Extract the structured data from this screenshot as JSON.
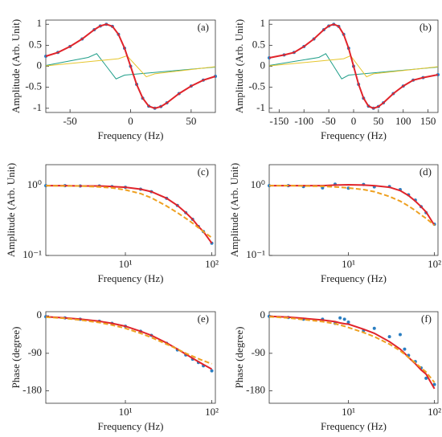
{
  "chart_data": [
    {
      "type": "line",
      "panel_label": "(a)",
      "x_label": "Frequency (Hz)",
      "y_label": "Amplitude (Arb. Unit)",
      "xlim": [
        -70,
        70
      ],
      "xticks": [
        -50,
        0,
        50
      ],
      "ylim": [
        -1.1,
        1.1
      ],
      "yticks": [
        -1,
        -0.5,
        0,
        0.5,
        1
      ],
      "x": [
        -70,
        -60,
        -50,
        -40,
        -30,
        -25,
        -20,
        -15,
        -10,
        -5,
        0,
        5,
        10,
        15,
        20,
        25,
        30,
        40,
        50,
        60,
        70
      ],
      "series": [
        {
          "style": "line",
          "color": "#1f9e89",
          "x": [
            -70,
            -35,
            -28,
            -20,
            -12,
            -5,
            70
          ],
          "values": [
            0.02,
            0.21,
            0.3,
            0,
            -0.3,
            -0.21,
            -0.02
          ]
        },
        {
          "style": "line",
          "color": "#e6c62d",
          "x": [
            -70,
            -10,
            -3,
            5,
            13,
            20,
            70
          ],
          "values": [
            0.01,
            0.18,
            0.25,
            0,
            -0.25,
            -0.18,
            -0.01
          ]
        },
        {
          "style": "dots",
          "color": "#2a7ec1",
          "values": [
            0.24,
            0.33,
            0.47,
            0.65,
            0.87,
            0.96,
            1,
            0.95,
            0.76,
            0.43,
            0,
            -0.43,
            -0.76,
            -0.95,
            -1,
            -0.96,
            -0.87,
            -0.65,
            -0.47,
            -0.33,
            -0.24
          ]
        },
        {
          "style": "line",
          "color": "#e0242b",
          "values": [
            0.24,
            0.33,
            0.47,
            0.65,
            0.87,
            0.96,
            1,
            0.95,
            0.76,
            0.43,
            0,
            -0.43,
            -0.76,
            -0.95,
            -1,
            -0.96,
            -0.87,
            -0.65,
            -0.47,
            -0.33,
            -0.24
          ]
        }
      ]
    },
    {
      "type": "line",
      "panel_label": "(b)",
      "x_label": "Frequency (Hz)",
      "y_label": "Amplitude (Arb. Unit)",
      "xlim": [
        -170,
        170
      ],
      "xticks": [
        -150,
        -100,
        -50,
        0,
        50,
        100,
        150
      ],
      "ylim": [
        -1.1,
        1.1
      ],
      "yticks": [
        -1,
        -0.5,
        0,
        0.5,
        1
      ],
      "x": [
        -170,
        -140,
        -120,
        -100,
        -80,
        -60,
        -50,
        -40,
        -30,
        -20,
        -10,
        0,
        10,
        20,
        30,
        40,
        50,
        60,
        80,
        100,
        120,
        140,
        170
      ],
      "series": [
        {
          "style": "line",
          "color": "#1f9e89",
          "x": [
            -170,
            -70,
            -56,
            -40,
            -24,
            -10,
            170
          ],
          "values": [
            0.02,
            0.21,
            0.3,
            0,
            -0.3,
            -0.21,
            -0.02
          ]
        },
        {
          "style": "line",
          "color": "#e6c62d",
          "x": [
            -170,
            -20,
            -6,
            10,
            26,
            40,
            170
          ],
          "values": [
            0.01,
            0.18,
            0.25,
            0,
            -0.25,
            -0.18,
            -0.01
          ]
        },
        {
          "style": "dots",
          "color": "#2a7ec1",
          "values": [
            0.2,
            0.27,
            0.33,
            0.47,
            0.65,
            0.87,
            0.96,
            1,
            0.95,
            0.76,
            0.43,
            0,
            -0.43,
            -0.76,
            -0.95,
            -1,
            -0.96,
            -0.87,
            -0.65,
            -0.47,
            -0.33,
            -0.27,
            -0.2
          ]
        },
        {
          "style": "line",
          "color": "#e0242b",
          "values": [
            0.2,
            0.27,
            0.33,
            0.47,
            0.65,
            0.87,
            0.96,
            1,
            0.95,
            0.76,
            0.43,
            0,
            -0.43,
            -0.76,
            -0.95,
            -1,
            -0.96,
            -0.87,
            -0.65,
            -0.47,
            -0.33,
            -0.27,
            -0.2
          ]
        }
      ]
    },
    {
      "type": "line",
      "panel_label": "(c)",
      "x_label": "Frequency (Hz)",
      "y_label": "Amplitude (Arb. Unit)",
      "xscale": "log",
      "yscale": "log",
      "xlim": [
        1.2,
        110
      ],
      "xticks": [
        {
          "value": 10,
          "label": "10¹"
        },
        {
          "value": 100,
          "label": "10²"
        }
      ],
      "ylim": [
        0.1,
        2
      ],
      "yticks": [
        {
          "value": 0.1,
          "label": "10⁻¹"
        },
        {
          "value": 1,
          "label": "10⁰"
        }
      ],
      "x": [
        1.2,
        2,
        3,
        5,
        7,
        10,
        15,
        20,
        30,
        40,
        50,
        60,
        70,
        80,
        100
      ],
      "series": [
        {
          "style": "dots",
          "color": "#2a7ec1",
          "values": [
            1,
            1,
            0.99,
            0.99,
            0.97,
            0.95,
            0.89,
            0.82,
            0.66,
            0.52,
            0.41,
            0.33,
            0.26,
            0.22,
            0.15
          ]
        },
        {
          "style": "line",
          "color": "#e0242b",
          "values": [
            1,
            1,
            0.99,
            0.99,
            0.97,
            0.95,
            0.89,
            0.82,
            0.66,
            0.52,
            0.41,
            0.33,
            0.26,
            0.22,
            0.15
          ]
        },
        {
          "style": "dashed",
          "color": "#eea020",
          "values": [
            1,
            0.99,
            0.99,
            0.96,
            0.93,
            0.87,
            0.77,
            0.67,
            0.51,
            0.41,
            0.34,
            0.29,
            0.25,
            0.22,
            0.18
          ]
        }
      ]
    },
    {
      "type": "line",
      "panel_label": "(d)",
      "x_label": "Frequency (Hz)",
      "y_label": "Amplitude (Arb. Unit)",
      "xscale": "log",
      "yscale": "log",
      "xlim": [
        1.2,
        110
      ],
      "xticks": [
        {
          "value": 10,
          "label": "10¹"
        },
        {
          "value": 100,
          "label": "10²"
        }
      ],
      "ylim": [
        0.1,
        2
      ],
      "yticks": [
        {
          "value": 0.1,
          "label": "10⁻¹"
        },
        {
          "value": 1,
          "label": "10⁰"
        }
      ],
      "x": [
        1.2,
        2,
        3,
        5,
        7,
        10,
        15,
        20,
        30,
        40,
        50,
        60,
        70,
        80,
        100
      ],
      "series": [
        {
          "style": "dots",
          "color": "#2a7ec1",
          "values": [
            1,
            1,
            0.97,
            0.93,
            1.05,
            0.92,
            1.04,
            0.96,
            0.97,
            0.88,
            0.74,
            0.62,
            0.5,
            0.41,
            0.28
          ]
        },
        {
          "style": "line",
          "color": "#e0242b",
          "values": [
            1,
            1,
            1,
            1,
            1.02,
            1.03,
            1.02,
            1,
            0.95,
            0.85,
            0.72,
            0.6,
            0.5,
            0.42,
            0.27
          ]
        },
        {
          "style": "dashed",
          "color": "#eea020",
          "values": [
            1,
            1,
            0.99,
            0.98,
            0.96,
            0.93,
            0.88,
            0.82,
            0.7,
            0.6,
            0.51,
            0.44,
            0.38,
            0.34,
            0.27
          ]
        }
      ]
    },
    {
      "type": "line",
      "panel_label": "(e)",
      "x_label": "Frequency (Hz)",
      "y_label": "Phase (degree)",
      "xscale": "log",
      "xlim": [
        1.2,
        110
      ],
      "xticks": [
        {
          "value": 10,
          "label": "10¹"
        },
        {
          "value": 100,
          "label": "10²"
        }
      ],
      "ylim": [
        -210,
        10
      ],
      "yticks": [
        -180,
        -90,
        0
      ],
      "x": [
        1.2,
        2,
        3,
        5,
        7,
        10,
        15,
        20,
        30,
        40,
        50,
        60,
        70,
        80,
        100
      ],
      "series": [
        {
          "style": "dots",
          "color": "#2a7ec1",
          "values": [
            -2,
            -5,
            -8,
            -13,
            -18,
            -25,
            -37,
            -47,
            -66,
            -82,
            -94,
            -104,
            -112,
            -120,
            -132
          ]
        },
        {
          "style": "line",
          "color": "#e0242b",
          "values": [
            -2,
            -5,
            -8,
            -13,
            -18,
            -25,
            -37,
            -47,
            -65,
            -80,
            -92,
            -102,
            -110,
            -117,
            -128
          ]
        },
        {
          "style": "dashed",
          "color": "#eea020",
          "values": [
            -3,
            -6,
            -10,
            -16,
            -22,
            -30,
            -42,
            -52,
            -68,
            -80,
            -90,
            -97,
            -103,
            -108,
            -115
          ]
        }
      ]
    },
    {
      "type": "line",
      "panel_label": "(f)",
      "x_label": "Frequency (Hz)",
      "y_label": "Phase (degree)",
      "xscale": "log",
      "xlim": [
        1.2,
        110
      ],
      "xticks": [
        {
          "value": 10,
          "label": "10¹"
        },
        {
          "value": 100,
          "label": "10²"
        }
      ],
      "ylim": [
        -210,
        10
      ],
      "yticks": [
        -180,
        -90,
        0
      ],
      "x": [
        1.2,
        2,
        3,
        5,
        7,
        8,
        9,
        10,
        15,
        20,
        30,
        40,
        45,
        50,
        60,
        70,
        80,
        100
      ],
      "series": [
        {
          "style": "dots",
          "color": "#2a7ec1",
          "values": [
            -1,
            -4,
            -8,
            -8,
            -18,
            -5,
            -8,
            -15,
            -35,
            -30,
            -50,
            -45,
            -80,
            -95,
            -110,
            -125,
            -150,
            -165
          ]
        },
        {
          "style": "line",
          "color": "#e0242b",
          "values": [
            -1,
            -3,
            -6,
            -10,
            -14,
            -17,
            -19,
            -20,
            -32,
            -42,
            -62,
            -80,
            -90,
            -100,
            -115,
            -130,
            -140,
            -175
          ]
        },
        {
          "style": "dashed",
          "color": "#eea020",
          "values": [
            -2,
            -5,
            -9,
            -14,
            -19,
            -22,
            -25,
            -28,
            -40,
            -50,
            -68,
            -84,
            -92,
            -100,
            -113,
            -125,
            -135,
            -160
          ]
        }
      ]
    }
  ]
}
